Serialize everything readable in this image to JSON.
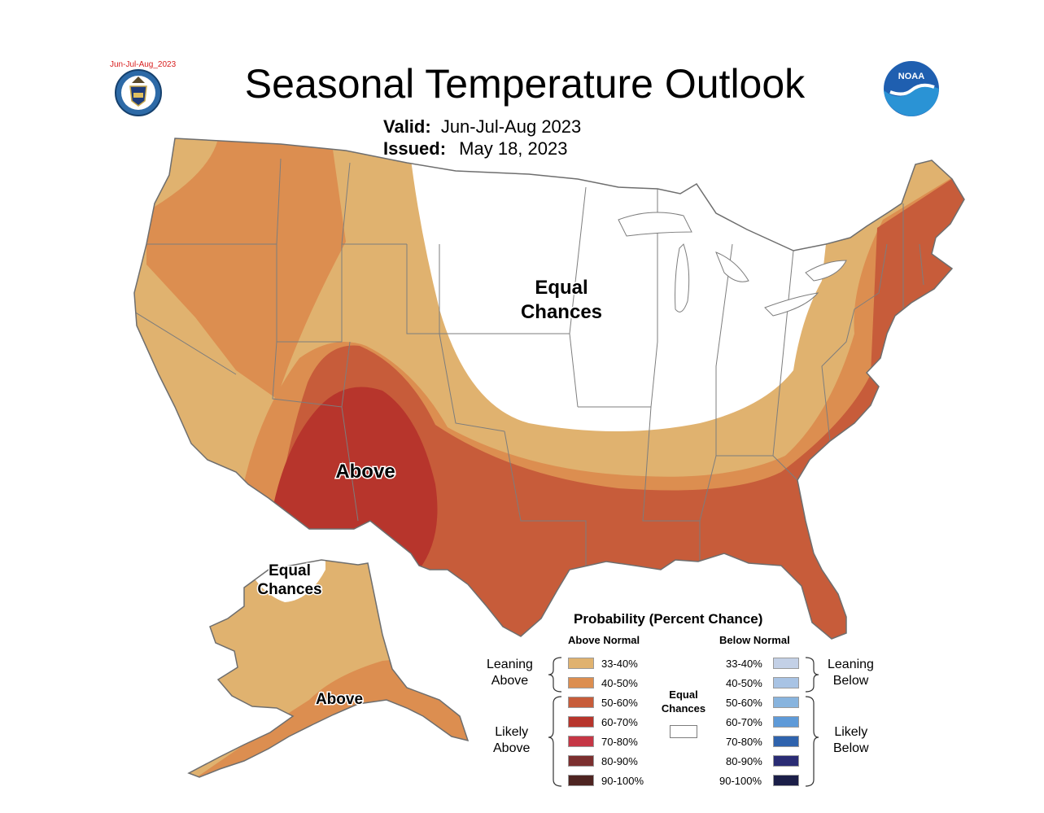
{
  "title": "Seasonal Temperature Outlook",
  "stamp": "Jun-Jul-Aug_2023",
  "valid_label": "Valid:",
  "valid_value": "Jun-Jul-Aug 2023",
  "issued_label": "Issued:",
  "issued_value": "May 18, 2023",
  "logos": {
    "left": "doc-seal-icon",
    "right": "noaa-logo-icon",
    "noaa_text": "NOAA"
  },
  "map_labels": {
    "equal_1": "Equal",
    "equal_2": "Chances",
    "above": "Above",
    "ak_equal_1": "Equal",
    "ak_equal_2": "Chances",
    "ak_above": "Above"
  },
  "colors": {
    "above_33_40": "#e0b26f",
    "above_40_50": "#dc8e50",
    "above_50_60": "#c75c3a",
    "above_60_70": "#b7352c",
    "above_70_80": "#c53645",
    "above_80_90": "#7b2f2f",
    "above_90_100": "#4e2421",
    "below_33_40": "#c3d0e6",
    "below_40_50": "#a8c3e4",
    "below_50_60": "#88b4de",
    "below_60_70": "#5e9ad8",
    "below_70_80": "#2f63ad",
    "below_80_90": "#2a2c74",
    "below_90_100": "#1b1e48",
    "equal": "#ffffff",
    "border": "#7d7d7d"
  },
  "legend": {
    "title": "Probability (Percent Chance)",
    "above_header": "Above Normal",
    "below_header": "Below Normal",
    "ranges": [
      "33-40%",
      "40-50%",
      "50-60%",
      "60-70%",
      "70-80%",
      "80-90%",
      "90-100%"
    ],
    "leaning_above": [
      "Leaning",
      "Above"
    ],
    "likely_above": [
      "Likely",
      "Above"
    ],
    "leaning_below": [
      "Leaning",
      "Below"
    ],
    "likely_below": [
      "Likely",
      "Below"
    ],
    "equal": [
      "Equal",
      "Chances"
    ]
  }
}
